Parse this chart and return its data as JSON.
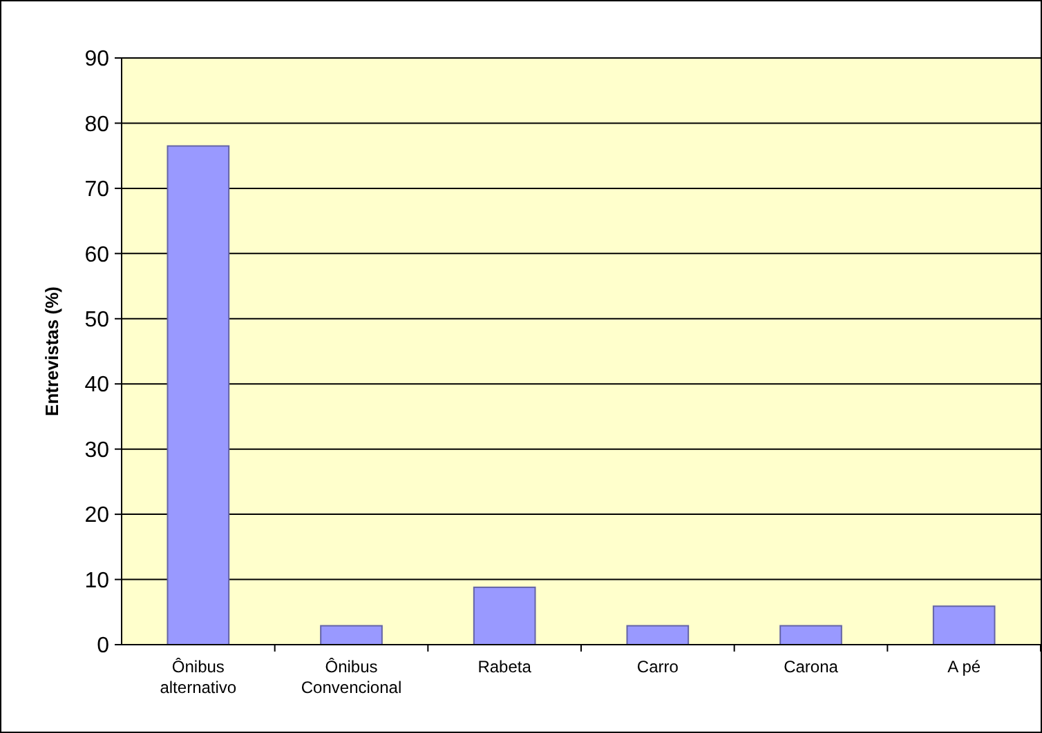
{
  "chart_data": {
    "type": "bar",
    "ylabel": "Entrevistas (%)",
    "categories": [
      "Ônibus alternativo",
      "Ônibus Convencional",
      "Rabeta",
      "Carro",
      "Carona",
      "A pé"
    ],
    "values": [
      76.5,
      2.9,
      8.8,
      2.9,
      2.9,
      5.9
    ],
    "color": "#9999ff",
    "ylim": [
      0,
      90
    ],
    "yticks": [
      0,
      10,
      20,
      30,
      40,
      50,
      60,
      70,
      80,
      90
    ],
    "grid": "y"
  }
}
